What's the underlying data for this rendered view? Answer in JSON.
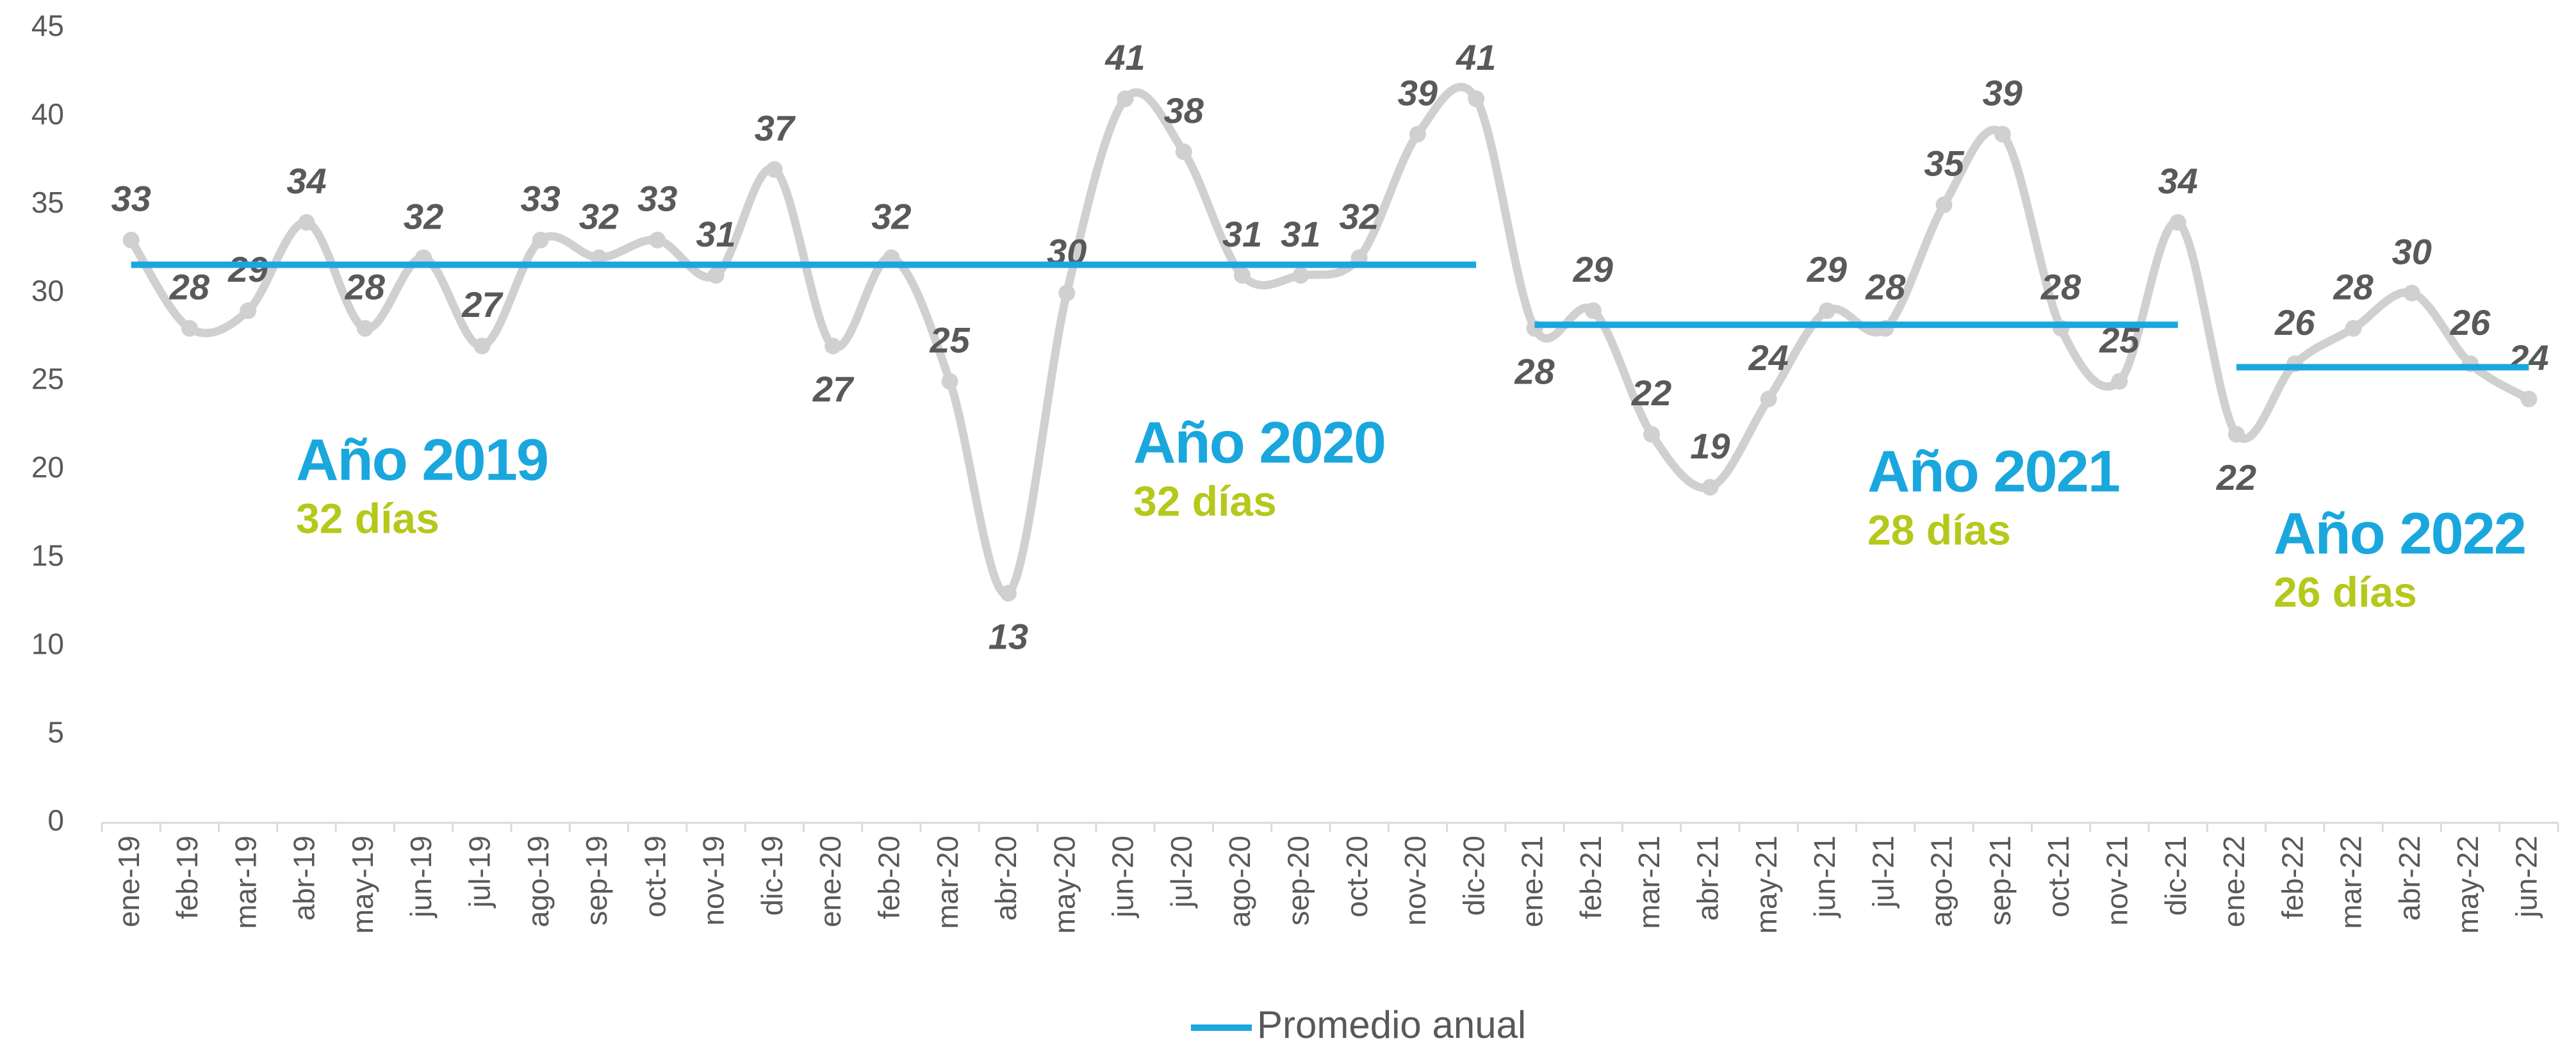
{
  "chart_data": {
    "type": "line",
    "categories": [
      "ene-19",
      "feb-19",
      "mar-19",
      "abr-19",
      "may-19",
      "jun-19",
      "jul-19",
      "ago-19",
      "sep-19",
      "oct-19",
      "nov-19",
      "dic-19",
      "ene-20",
      "feb-20",
      "mar-20",
      "abr-20",
      "may-20",
      "jun-20",
      "jul-20",
      "ago-20",
      "sep-20",
      "oct-20",
      "nov-20",
      "dic-20",
      "ene-21",
      "feb-21",
      "mar-21",
      "abr-21",
      "may-21",
      "jun-21",
      "jul-21",
      "ago-21",
      "sep-21",
      "oct-21",
      "nov-21",
      "dic-21",
      "ene-22",
      "feb-22",
      "mar-22",
      "abr-22",
      "may-22",
      "jun-22"
    ],
    "series": [
      {
        "color": "#d0d0d0",
        "smooth": true,
        "data_labels": true,
        "values": [
          33,
          28,
          29,
          34,
          28,
          32,
          27,
          33,
          32,
          33,
          31,
          37,
          27,
          32,
          25,
          13,
          30,
          41,
          38,
          31,
          31,
          32,
          39,
          41,
          28,
          29,
          22,
          19,
          24,
          29,
          28,
          35,
          39,
          28,
          25,
          34,
          22,
          26,
          28,
          30,
          26,
          24
        ]
      },
      {
        "name": "Promedio anual",
        "color": "#1aa7dd",
        "values": [
          31.6,
          31.6,
          31.6,
          31.6,
          31.6,
          31.6,
          31.6,
          31.6,
          31.6,
          31.6,
          31.6,
          31.6,
          31.6,
          31.6,
          31.6,
          31.6,
          31.6,
          31.6,
          31.6,
          31.6,
          31.6,
          31.6,
          31.6,
          31.6,
          28.2,
          28.2,
          28.2,
          28.2,
          28.2,
          28.2,
          28.2,
          28.2,
          28.2,
          28.2,
          28.2,
          28.2,
          25.8,
          25.8,
          25.8,
          25.8,
          25.8,
          25.8
        ]
      }
    ],
    "annotations": [
      {
        "title": "Año 2019",
        "subtitle": "32 días"
      },
      {
        "title": "Año 2020",
        "subtitle": "32 días"
      },
      {
        "title": "Año 2021",
        "subtitle": "28 días"
      },
      {
        "title": "Año 2022",
        "subtitle": "26 días"
      }
    ],
    "ylim": [
      0,
      45
    ],
    "yticks": [
      0,
      5,
      10,
      15,
      20,
      25,
      30,
      35,
      40,
      45
    ],
    "legend": "bottom"
  }
}
